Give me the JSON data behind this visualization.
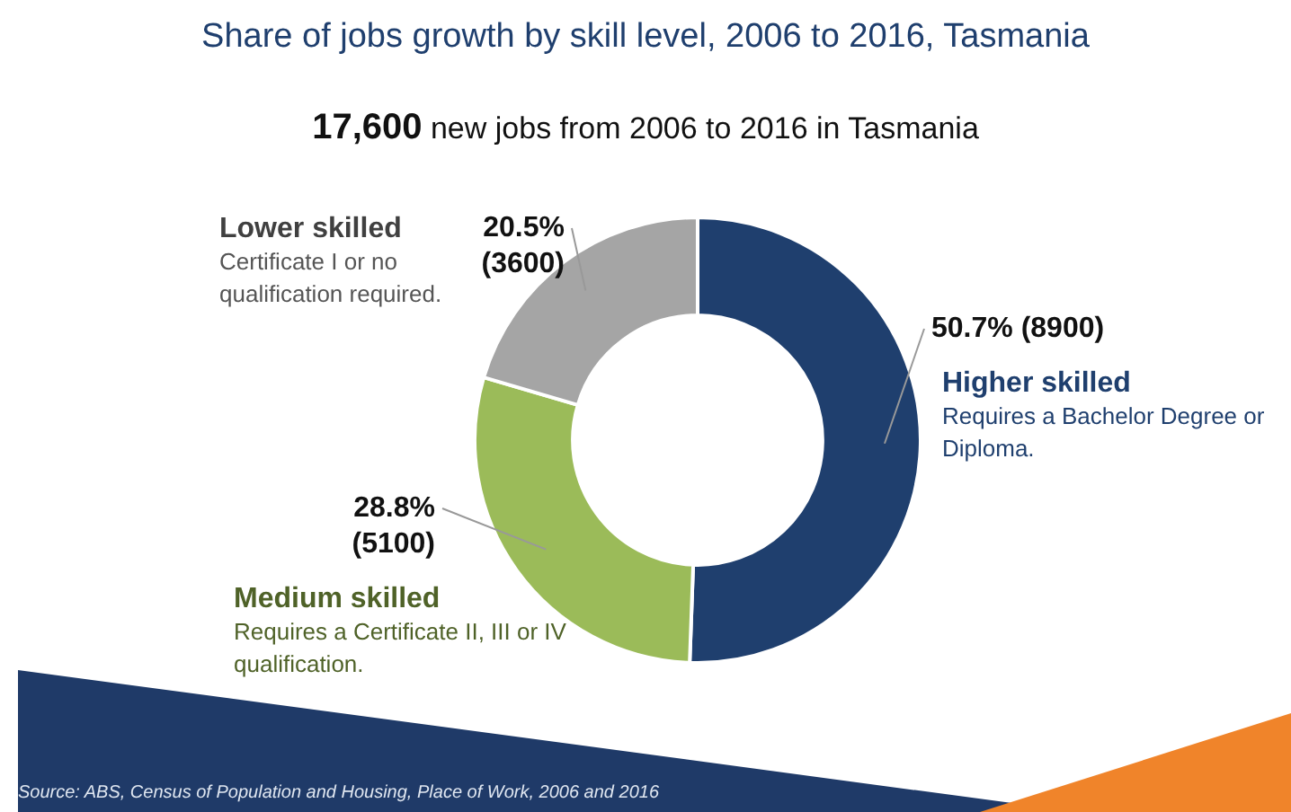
{
  "chart_data": {
    "type": "donut",
    "title": "Share of jobs growth by skill level, 2006 to 2016, Tasmania",
    "subtitle": "17,600 new jobs from 2006 to 2016 in Tasmania",
    "categories": [
      "Higher skilled",
      "Medium skilled",
      "Lower skilled"
    ],
    "values": [
      8900,
      5100,
      3600
    ],
    "value_labels": [
      "50.7% (8900)",
      "28.8% (5100)",
      "20.5% (3600)"
    ],
    "colors": [
      "#1f3f6e",
      "#9bbb59",
      "#a5a5a5"
    ],
    "annotations": [
      "Requires a Bachelor Degree or Diploma.",
      "Requires a Certificate II, III or IV qualification.",
      "Certificate I or no qualification required.",
      "Source: ABS, Census of Population and Housing, Place of Work, 2006 and 2016"
    ],
    "legend": false
  }
}
